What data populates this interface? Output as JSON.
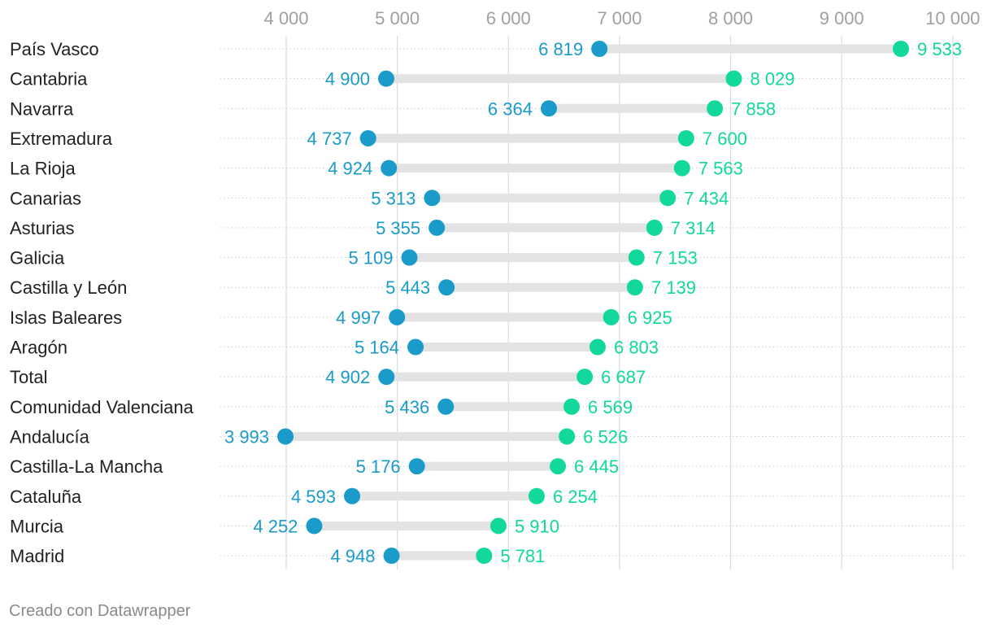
{
  "chart_data": {
    "type": "dot-range",
    "xlim": [
      3000,
      10200
    ],
    "x_ticks": [
      4000,
      5000,
      6000,
      7000,
      8000,
      9000,
      10000
    ],
    "x_tick_labels": [
      "4 000",
      "5 000",
      "6 000",
      "7 000",
      "8 000",
      "9 000",
      "10 000"
    ],
    "grid": true,
    "colors": {
      "low": "#1a9bc9",
      "high": "#12d89b",
      "bar": "#e3e3e3",
      "grid": "#dcdcdc",
      "tick": "#a0a0a0"
    },
    "rows": [
      {
        "label": "País Vasco",
        "low": 6819,
        "low_label": "6 819",
        "high": 9533,
        "high_label": "9 533"
      },
      {
        "label": "Cantabria",
        "low": 4900,
        "low_label": "4 900",
        "high": 8029,
        "high_label": "8 029"
      },
      {
        "label": "Navarra",
        "low": 6364,
        "low_label": "6 364",
        "high": 7858,
        "high_label": "7 858"
      },
      {
        "label": "Extremadura",
        "low": 4737,
        "low_label": "4 737",
        "high": 7600,
        "high_label": "7 600"
      },
      {
        "label": "La Rioja",
        "low": 4924,
        "low_label": "4 924",
        "high": 7563,
        "high_label": "7 563"
      },
      {
        "label": "Canarias",
        "low": 5313,
        "low_label": "5 313",
        "high": 7434,
        "high_label": "7 434"
      },
      {
        "label": "Asturias",
        "low": 5355,
        "low_label": "5 355",
        "high": 7314,
        "high_label": "7 314"
      },
      {
        "label": "Galicia",
        "low": 5109,
        "low_label": "5 109",
        "high": 7153,
        "high_label": "7 153"
      },
      {
        "label": "Castilla y León",
        "low": 5443,
        "low_label": "5 443",
        "high": 7139,
        "high_label": "7 139"
      },
      {
        "label": "Islas Baleares",
        "low": 4997,
        "low_label": "4 997",
        "high": 6925,
        "high_label": "6 925"
      },
      {
        "label": "Aragón",
        "low": 5164,
        "low_label": "5 164",
        "high": 6803,
        "high_label": "6 803"
      },
      {
        "label": "Total",
        "low": 4902,
        "low_label": "4 902",
        "high": 6687,
        "high_label": "6 687"
      },
      {
        "label": "Comunidad Valenciana",
        "low": 5436,
        "low_label": "5 436",
        "high": 6569,
        "high_label": "6 569"
      },
      {
        "label": "Andalucía",
        "low": 3993,
        "low_label": "3 993",
        "high": 6526,
        "high_label": "6 526"
      },
      {
        "label": "Castilla-La Mancha",
        "low": 5176,
        "low_label": "5 176",
        "high": 6445,
        "high_label": "6 445"
      },
      {
        "label": "Cataluña",
        "low": 4593,
        "low_label": "4 593",
        "high": 6254,
        "high_label": "6 254"
      },
      {
        "label": "Murcia",
        "low": 4252,
        "low_label": "4 252",
        "high": 5910,
        "high_label": "5 910"
      },
      {
        "label": "Madrid",
        "low": 4948,
        "low_label": "4 948",
        "high": 5781,
        "high_label": "5 781"
      }
    ]
  },
  "footer": {
    "credit": "Creado con Datawrapper"
  }
}
